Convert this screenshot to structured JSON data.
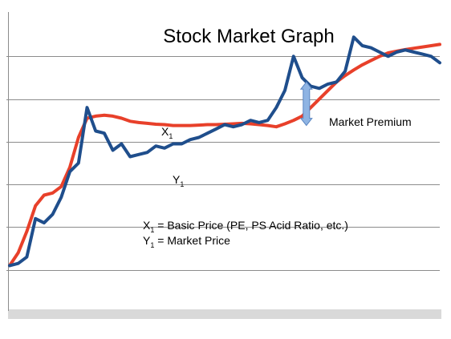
{
  "chart_data": {
    "type": "line",
    "title": "Stock Market Graph",
    "xlabel": "",
    "ylabel": "",
    "ylim": [
      0,
      7
    ],
    "grid": true,
    "x": [
      0,
      2,
      4,
      6,
      8,
      10,
      12,
      14,
      16,
      18,
      20,
      22,
      24,
      26,
      28,
      30,
      32,
      34,
      36,
      38,
      40,
      42,
      44,
      46,
      48,
      50,
      52,
      54,
      56,
      58,
      60,
      62,
      64,
      66,
      68,
      70,
      72,
      74,
      76,
      78,
      80,
      82,
      84,
      86,
      88,
      90,
      92,
      94,
      96,
      98,
      100
    ],
    "series": [
      {
        "name": "X",
        "name_sub": "1",
        "color": "#e8402a",
        "values": [
          1.1,
          1.4,
          1.9,
          2.5,
          2.75,
          2.8,
          2.95,
          3.4,
          4.1,
          4.55,
          4.6,
          4.62,
          4.6,
          4.55,
          4.48,
          4.45,
          4.43,
          4.41,
          4.4,
          4.38,
          4.38,
          4.38,
          4.39,
          4.4,
          4.4,
          4.41,
          4.42,
          4.43,
          4.42,
          4.4,
          4.38,
          4.35,
          4.42,
          4.5,
          4.6,
          4.8,
          5.0,
          5.2,
          5.4,
          5.55,
          5.68,
          5.8,
          5.9,
          6.0,
          6.08,
          6.12,
          6.16,
          6.19,
          6.22,
          6.25,
          6.28
        ]
      },
      {
        "name": "Y",
        "name_sub": "1",
        "color": "#1f4e8c",
        "values": [
          1.1,
          1.15,
          1.3,
          2.2,
          2.1,
          2.3,
          2.7,
          3.3,
          3.5,
          4.8,
          4.25,
          4.2,
          3.8,
          3.95,
          3.65,
          3.7,
          3.75,
          3.9,
          3.85,
          3.95,
          3.95,
          4.05,
          4.1,
          4.2,
          4.3,
          4.4,
          4.35,
          4.4,
          4.5,
          4.45,
          4.5,
          4.8,
          5.2,
          6.0,
          5.5,
          5.3,
          5.25,
          5.35,
          5.4,
          5.65,
          6.45,
          6.25,
          6.2,
          6.1,
          6.0,
          6.1,
          6.15,
          6.1,
          6.05,
          6.0,
          5.85
        ]
      }
    ],
    "annotations": {
      "x1_tag": "X",
      "x1_sub": "1",
      "y1_tag": "Y",
      "y1_sub": "1",
      "premium_label": "Market Premium",
      "premium_range": [
        4.38,
        5.4
      ],
      "premium_x": 69,
      "legend_line1_var": "X",
      "legend_line1_sub": "1",
      "legend_line1_text": " = Basic Price (PE, PS Acid Ratio, etc.)",
      "legend_line2_var": "Y",
      "legend_line2_sub": "1",
      "legend_line2_text": " = Market Price"
    },
    "colors": {
      "arrow_fill": "#8fb4e3",
      "arrow_stroke": "#5b86c2",
      "grid": "#8c8c8c",
      "floor": "#d9d9d9"
    }
  }
}
